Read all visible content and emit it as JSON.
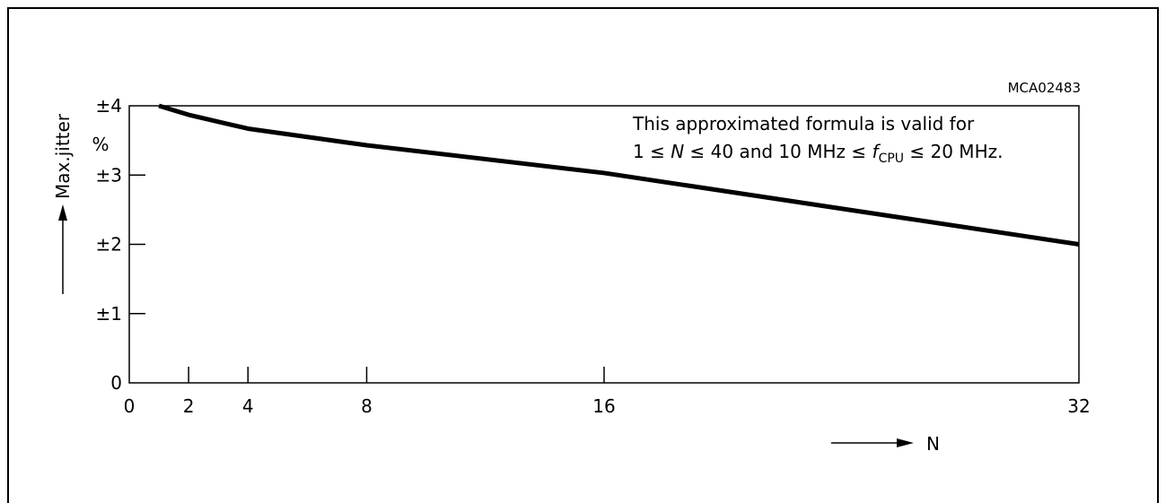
{
  "figure_id": "MCA02483",
  "chart_data": {
    "type": "line",
    "xlabel": "N",
    "ylabel": "Max.jitter",
    "y_unit": "%",
    "xlim": [
      0,
      32
    ],
    "ylim": [
      0,
      4
    ],
    "x_ticks": [
      0,
      2,
      4,
      8,
      16,
      32
    ],
    "x_tick_labels": [
      "0",
      "2",
      "4",
      "8",
      "16",
      "32"
    ],
    "y_ticks": [
      0,
      1,
      2,
      3,
      4
    ],
    "y_tick_labels": [
      "0",
      "±1",
      "±2",
      "±3",
      "±4"
    ],
    "grid": false,
    "series": [
      {
        "x": [
          1,
          2,
          4,
          8,
          16,
          32
        ],
        "y": [
          4.0,
          3.87,
          3.67,
          3.43,
          3.03,
          2.0
        ]
      }
    ],
    "annotation": {
      "line1": "This approximated formula is valid for",
      "line2_prefix": "1 ≤ ",
      "line2_var": "N",
      "line2_mid": " ≤ 40 and 10 MHz ≤ ",
      "line2_f": "f",
      "line2_sub": "CPU",
      "line2_suffix": " ≤ 20 MHz."
    }
  }
}
